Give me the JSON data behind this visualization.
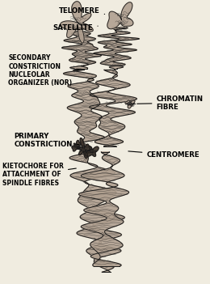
{
  "bg_color": "#f0ece0",
  "c_fill": "#b0a090",
  "c_dark": "#1a1a1a",
  "c_mid": "#807060",
  "c_light": "#d0c0a8",
  "text_color": "#000000",
  "figsize": [
    2.6,
    3.51
  ],
  "dpi": 100,
  "labels": {
    "telomere": "TELOMERE",
    "satellite": "SATELLITE",
    "secondary": "SECONDARY\nCONSTRICTION\nNUCLEOLAR\nORGANIZER (NOR)",
    "chromatin": "CHROMATIN\nFIBRE",
    "primary": "PRIMARY\nCONSTRICTION",
    "centromere": "CENTROMERE",
    "kietochore": "KIETOCHORE FOR\nATTACHMENT OF\nSPINDLE FIBRES"
  }
}
